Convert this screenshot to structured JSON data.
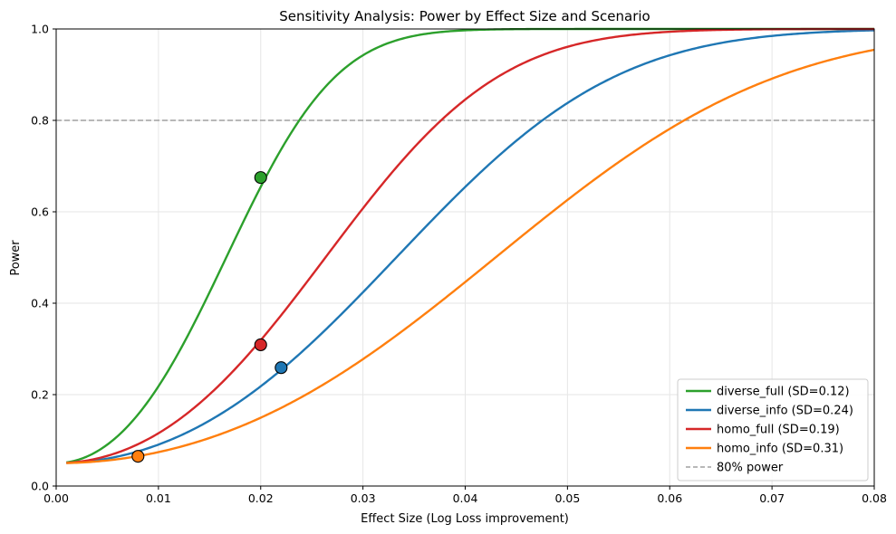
{
  "chart_data": {
    "type": "line",
    "title": "Sensitivity Analysis: Power by Effect Size and Scenario",
    "xlabel": "Effect Size (Log Loss improvement)",
    "ylabel": "Power",
    "xlim": [
      0.0,
      0.08
    ],
    "ylim": [
      0.0,
      1.0
    ],
    "xticks": [
      "0.00",
      "0.01",
      "0.02",
      "0.03",
      "0.04",
      "0.05",
      "0.06",
      "0.07",
      "0.08"
    ],
    "yticks": [
      "0.0",
      "0.2",
      "0.4",
      "0.6",
      "0.8",
      "1.0"
    ],
    "grid": true,
    "legend_position": "bottom-right",
    "alpha": 0.05,
    "x_start": 0.001,
    "n": 200,
    "series": [
      {
        "name": "diverse_full (SD=0.12)",
        "color": "#2ca02c",
        "sd": 0.12,
        "marker": {
          "x": 0.02,
          "y": 0.675
        }
      },
      {
        "name": "diverse_info (SD=0.24)",
        "color": "#1f77b4",
        "sd": 0.24,
        "marker": {
          "x": 0.022,
          "y": 0.259
        }
      },
      {
        "name": "homo_full (SD=0.19)",
        "color": "#d62728",
        "sd": 0.19,
        "marker": {
          "x": 0.02,
          "y": 0.309
        }
      },
      {
        "name": "homo_info (SD=0.31)",
        "color": "#ff7f0e",
        "sd": 0.31,
        "marker": {
          "x": 0.008,
          "y": 0.065
        }
      }
    ],
    "reference_line": {
      "label": "80% power",
      "y": 0.8,
      "color": "#a0a0a0"
    }
  }
}
